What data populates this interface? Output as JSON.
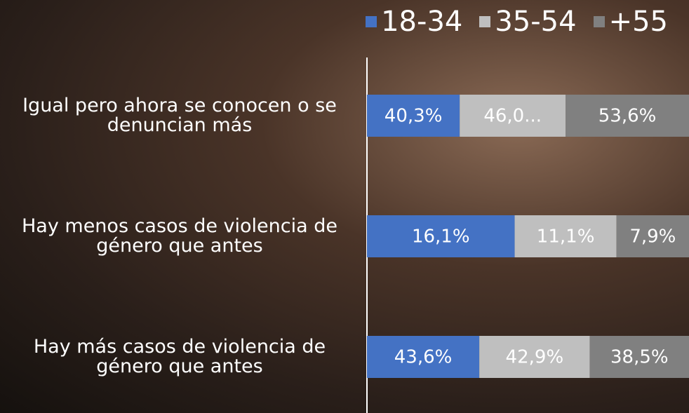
{
  "chart_data": {
    "type": "bar",
    "categories": [
      "Igual pero ahora se conocen o se denuncian más",
      "Hay menos casos de violencia de género que antes",
      "Hay más casos de violencia de género que antes"
    ],
    "series": [
      {
        "name": "18-34",
        "color": "#4472c4",
        "values": [
          40.3,
          16.1,
          43.6
        ],
        "value_labels": [
          "40,3%",
          "16,1%",
          "43,6%"
        ]
      },
      {
        "name": "35-54",
        "color": "#bfbfbf",
        "values": [
          46.0,
          11.1,
          42.9
        ],
        "value_labels": [
          "46,0...",
          "11,1%",
          "42,9%"
        ]
      },
      {
        "name": "+55",
        "color": "#808080",
        "values": [
          53.6,
          7.9,
          38.5
        ],
        "value_labels": [
          "53,6%",
          "7,9%",
          "38,5%"
        ]
      }
    ]
  }
}
